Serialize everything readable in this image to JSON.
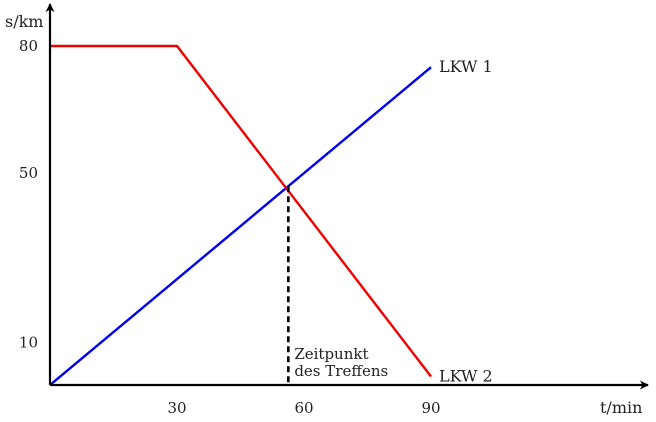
{
  "chart_data": {
    "type": "line",
    "xlabel": "t/min",
    "ylabel": "s/km",
    "xlim": [
      0,
      140
    ],
    "ylim": [
      0,
      87
    ],
    "x_ticks": [
      30,
      60,
      90
    ],
    "y_ticks": [
      10,
      50,
      80
    ],
    "grid": false,
    "series": [
      {
        "name": "LKW 1",
        "color": "#0000ee",
        "points": [
          [
            0,
            0
          ],
          [
            90,
            75
          ]
        ]
      },
      {
        "name": "LKW 2",
        "color": "#ee0000",
        "points": [
          [
            0,
            80
          ],
          [
            30,
            80
          ],
          [
            90,
            2
          ]
        ]
      }
    ],
    "annotation": {
      "lines": [
        "Zeitpunkt",
        "des Treffens"
      ],
      "x": 56.3,
      "y": 46.9
    }
  }
}
